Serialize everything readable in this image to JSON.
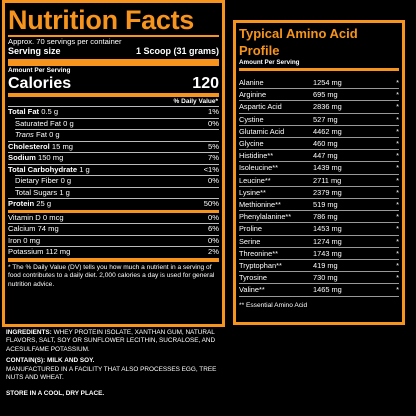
{
  "nutrition": {
    "title": "Nutrition Facts",
    "servings": "Approx. 70 servings per container",
    "serving_size_label": "Serving size",
    "serving_size_value": "1 Scoop (31 grams)",
    "amount_per_serving": "Amount Per Serving",
    "calories_label": "Calories",
    "calories_value": "120",
    "daily_value_header": "% Daily Value*",
    "rows": [
      {
        "label": "Total Fat",
        "amount": "0.5 g",
        "dv": "1%"
      },
      {
        "label": "Saturated Fat",
        "amount": "0 g",
        "dv": "0%"
      },
      {
        "label": "Trans",
        "amount": "Fat 0 g",
        "dv": ""
      },
      {
        "label": "Cholesterol",
        "amount": "15 mg",
        "dv": "5%"
      },
      {
        "label": "Sodium",
        "amount": "150 mg",
        "dv": "7%"
      },
      {
        "label": "Total Carbohydrate",
        "amount": "1 g",
        "dv": "<1%"
      },
      {
        "label": "Dietary Fiber",
        "amount": "0 g",
        "dv": "0%"
      },
      {
        "label": "Total Sugars",
        "amount": "1 g",
        "dv": ""
      },
      {
        "label": "Protein",
        "amount": "25 g",
        "dv": "50%"
      },
      {
        "label": "Vitamin D",
        "amount": "0 mcg",
        "dv": "0%"
      },
      {
        "label": "Calcium",
        "amount": "74 mg",
        "dv": "6%"
      },
      {
        "label": "Iron",
        "amount": "0 mg",
        "dv": "0%"
      },
      {
        "label": "Potassium",
        "amount": "112 mg",
        "dv": "2%"
      }
    ],
    "footnote": "* The % Daily Value (DV) tells you how much a nutrient in a serving of food contributes to a daily diet. 2,000 calories a day is used for general nutrition advice."
  },
  "amino": {
    "title": "Typical Amino Acid Profile",
    "subtitle": "Amount Per Serving",
    "rows": [
      {
        "name": "Alanine",
        "value": "1254 mg",
        "star": "*"
      },
      {
        "name": "Arginine",
        "value": "695 mg",
        "star": "*"
      },
      {
        "name": "Aspartic Acid",
        "value": "2836 mg",
        "star": "*"
      },
      {
        "name": "Cystine",
        "value": "527 mg",
        "star": "*"
      },
      {
        "name": "Glutamic Acid",
        "value": "4462 mg",
        "star": "*"
      },
      {
        "name": "Glycine",
        "value": "460 mg",
        "star": "*"
      },
      {
        "name": "Histidine**",
        "value": "447 mg",
        "star": "*"
      },
      {
        "name": "Isoleucine**",
        "value": "1439 mg",
        "star": "*"
      },
      {
        "name": "Leucine**",
        "value": "2711 mg",
        "star": "*"
      },
      {
        "name": "Lysine**",
        "value": "2379 mg",
        "star": "*"
      },
      {
        "name": "Methionine**",
        "value": "519 mg",
        "star": "*"
      },
      {
        "name": "Phenylalanine**",
        "value": "786 mg",
        "star": "*"
      },
      {
        "name": "Proline",
        "value": "1453 mg",
        "star": "*"
      },
      {
        "name": "Serine",
        "value": "1274 mg",
        "star": "*"
      },
      {
        "name": "Threonine**",
        "value": "1743 mg",
        "star": "*"
      },
      {
        "name": "Tryptophan**",
        "value": "419 mg",
        "star": "*"
      },
      {
        "name": "Tyrosine",
        "value": "730 mg",
        "star": "*"
      },
      {
        "name": "Valine**",
        "value": "1465 mg",
        "star": "*"
      }
    ],
    "note": "** Essential Amino Acid"
  },
  "label_text": {
    "ingredients_label": "INGREDIENTS:",
    "ingredients": "WHEY PROTEIN ISOLATE, XANTHAN GUM, NATURAL FLAVORS, SALT, SOY OR SUNFLOWER LECITHIN, SUCRALOSE, AND ACESULFAME POTASSIUM.",
    "contains_label": "CONTAIN(S): MILK AND SOY.",
    "facility": "MANUFACTURED IN A FACILITY THAT ALSO PROCESSES EGG, TREE NUTS AND WHEAT.",
    "storage": "STORE IN A COOL, DRY PLACE."
  }
}
